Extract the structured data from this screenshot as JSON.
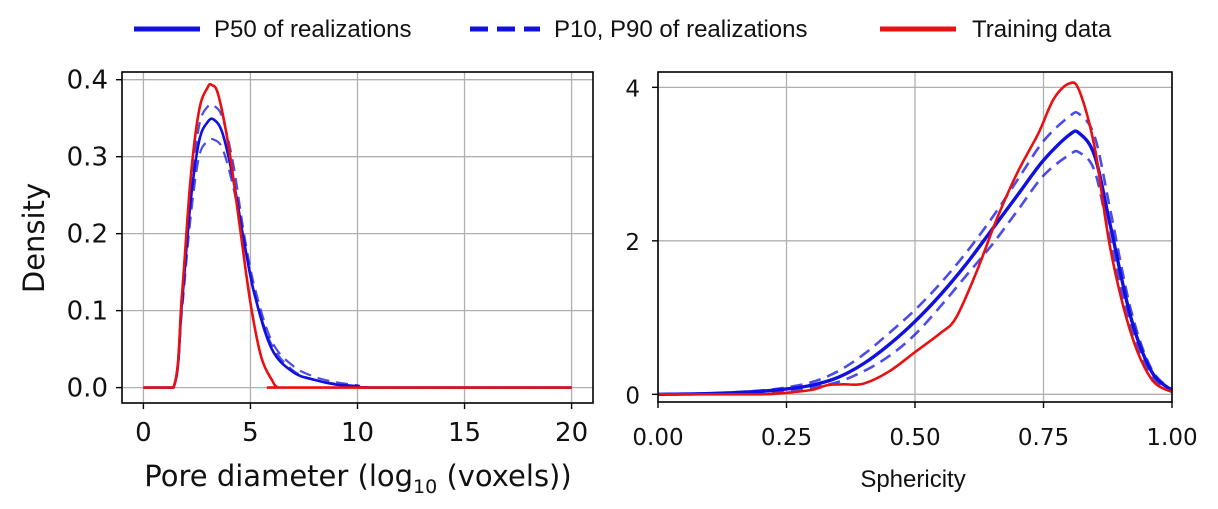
{
  "legend": {
    "items": [
      {
        "label": "P50 of realizations",
        "style": "solid",
        "color": "#1010e0"
      },
      {
        "label": "P10, P90 of realizations",
        "style": "dashed",
        "color": "#1010e0"
      },
      {
        "label": "Training data",
        "style": "solid",
        "color": "#e81010"
      }
    ]
  },
  "chart_data": [
    {
      "type": "line",
      "title": "",
      "xlabel": "Pore diameter (log",
      "xlabel_sub": "10",
      "xlabel_suffix": " (voxels))",
      "ylabel": "Density",
      "xlim": [
        -1,
        21
      ],
      "ylim": [
        -0.02,
        0.41
      ],
      "xticks": [
        0,
        5,
        10,
        15,
        20
      ],
      "xtick_labels": [
        "0",
        "5",
        "10",
        "15",
        "20"
      ],
      "yticks": [
        0.0,
        0.1,
        0.2,
        0.3,
        0.4
      ],
      "ytick_labels": [
        "0.0",
        "0.1",
        "0.2",
        "0.3",
        "0.4"
      ],
      "grid": true,
      "series": [
        {
          "name": "Training data",
          "color": "#e81010",
          "style": "solid",
          "width": 2.6,
          "x": [
            0,
            1.4,
            1.8,
            2.2,
            2.6,
            3.0,
            3.2,
            3.5,
            4.0,
            4.5,
            5.0,
            5.5,
            6.0,
            6.3,
            7,
            20
          ],
          "y": [
            0,
            0,
            0.12,
            0.27,
            0.36,
            0.39,
            0.393,
            0.38,
            0.31,
            0.21,
            0.11,
            0.04,
            0.01,
            0,
            0,
            0
          ]
        },
        {
          "name": "P50 of realizations",
          "color": "#1010e0",
          "style": "solid",
          "width": 2.6,
          "x": [
            0,
            1.4,
            1.8,
            2.2,
            2.6,
            3.0,
            3.3,
            3.7,
            4.2,
            4.7,
            5.2,
            6.0,
            7.0,
            8.0,
            9.0,
            10,
            11,
            20
          ],
          "y": [
            0,
            0,
            0.11,
            0.24,
            0.32,
            0.345,
            0.348,
            0.33,
            0.27,
            0.19,
            0.12,
            0.05,
            0.02,
            0.01,
            0.004,
            0.002,
            0,
            0
          ]
        },
        {
          "name": "P10 of realizations",
          "color": "#1010e0",
          "style": "dashed",
          "width": 2.2,
          "x": [
            0,
            1.4,
            1.8,
            2.2,
            2.6,
            3.0,
            3.3,
            3.7,
            4.2,
            4.7,
            5.2,
            6.0,
            7.0,
            8.0,
            9.0,
            10,
            11,
            20
          ],
          "y": [
            0,
            0,
            0.1,
            0.22,
            0.3,
            0.32,
            0.322,
            0.31,
            0.26,
            0.19,
            0.12,
            0.055,
            0.022,
            0.01,
            0.005,
            0.002,
            0,
            0
          ]
        },
        {
          "name": "P90 of realizations",
          "color": "#1010e0",
          "style": "dashed",
          "width": 2.2,
          "x": [
            0,
            1.4,
            1.8,
            2.2,
            2.6,
            3.0,
            3.3,
            3.7,
            4.2,
            4.7,
            5.2,
            6.0,
            7.0,
            8.0,
            9.0,
            10,
            11,
            20
          ],
          "y": [
            0,
            0,
            0.12,
            0.25,
            0.34,
            0.365,
            0.366,
            0.35,
            0.29,
            0.2,
            0.13,
            0.06,
            0.028,
            0.014,
            0.007,
            0.003,
            0,
            0
          ]
        }
      ]
    },
    {
      "type": "line",
      "title": "",
      "xlabel": "Sphericity",
      "ylabel": "",
      "xlim": [
        0.0,
        1.0
      ],
      "ylim": [
        -0.1,
        4.2
      ],
      "xticks": [
        0.0,
        0.25,
        0.5,
        0.75,
        1.0
      ],
      "xtick_labels": [
        "0.00",
        "0.25",
        "0.50",
        "0.75",
        "1.00"
      ],
      "yticks": [
        0,
        2,
        4
      ],
      "ytick_labels": [
        "0",
        "2",
        "4"
      ],
      "grid": true,
      "series": [
        {
          "name": "Training data",
          "color": "#e81010",
          "style": "solid",
          "width": 2.6,
          "x": [
            0.0,
            0.1,
            0.2,
            0.25,
            0.3,
            0.33,
            0.36,
            0.4,
            0.45,
            0.5,
            0.55,
            0.58,
            0.62,
            0.66,
            0.7,
            0.74,
            0.77,
            0.8,
            0.82,
            0.85,
            0.88,
            0.92,
            0.96,
            1.0
          ],
          "y": [
            0,
            0,
            0.0,
            0.02,
            0.06,
            0.12,
            0.13,
            0.14,
            0.3,
            0.55,
            0.8,
            1.0,
            1.6,
            2.3,
            2.9,
            3.4,
            3.85,
            4.05,
            3.95,
            3.2,
            1.9,
            0.8,
            0.2,
            0.03
          ]
        },
        {
          "name": "P50 of realizations",
          "color": "#1010e0",
          "style": "solid",
          "width": 3.4,
          "x": [
            0.0,
            0.1,
            0.2,
            0.25,
            0.3,
            0.35,
            0.4,
            0.45,
            0.5,
            0.55,
            0.6,
            0.65,
            0.7,
            0.75,
            0.8,
            0.82,
            0.85,
            0.88,
            0.92,
            0.96,
            1.0
          ],
          "y": [
            0,
            0.01,
            0.04,
            0.07,
            0.12,
            0.22,
            0.4,
            0.65,
            0.95,
            1.3,
            1.7,
            2.15,
            2.6,
            3.05,
            3.38,
            3.4,
            3.1,
            2.2,
            1.0,
            0.3,
            0.05
          ]
        },
        {
          "name": "P10 of realizations",
          "color": "#1010e0",
          "style": "dashed",
          "width": 2.6,
          "x": [
            0.0,
            0.1,
            0.2,
            0.25,
            0.3,
            0.35,
            0.4,
            0.45,
            0.5,
            0.55,
            0.6,
            0.65,
            0.7,
            0.75,
            0.8,
            0.82,
            0.85,
            0.88,
            0.92,
            0.96,
            1.0
          ],
          "y": [
            0,
            0.01,
            0.03,
            0.05,
            0.09,
            0.16,
            0.3,
            0.5,
            0.78,
            1.15,
            1.55,
            1.95,
            2.4,
            2.85,
            3.12,
            3.15,
            2.9,
            2.0,
            0.9,
            0.25,
            0.04
          ]
        },
        {
          "name": "P90 of realizations",
          "color": "#1010e0",
          "style": "dashed",
          "width": 2.6,
          "x": [
            0.0,
            0.1,
            0.2,
            0.25,
            0.3,
            0.35,
            0.4,
            0.45,
            0.5,
            0.55,
            0.6,
            0.65,
            0.7,
            0.75,
            0.8,
            0.82,
            0.85,
            0.88,
            0.92,
            0.96,
            1.0
          ],
          "y": [
            0,
            0.01,
            0.05,
            0.09,
            0.16,
            0.3,
            0.52,
            0.8,
            1.1,
            1.45,
            1.85,
            2.3,
            2.8,
            3.3,
            3.62,
            3.65,
            3.35,
            2.4,
            1.1,
            0.33,
            0.06
          ]
        }
      ]
    }
  ]
}
